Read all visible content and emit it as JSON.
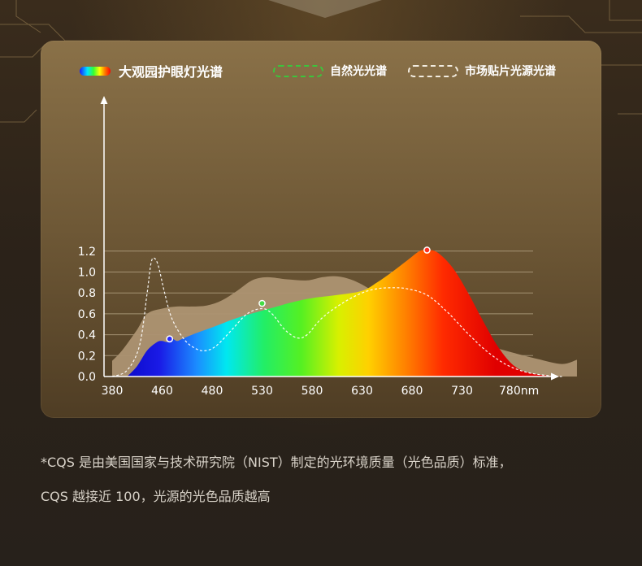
{
  "footnote": {
    "line1": "*CQS 是由美国国家与技术研究院（NIST）制定的光环境质量（光色品质）标准，",
    "line2": "CQS 越接近 100，光源的光色品质越高"
  },
  "colors": {
    "market_fill": "#ad9472",
    "natural_line": "#ffffff",
    "grid": "#b9a889",
    "axis": "#ffffff",
    "text": "#ffffff"
  },
  "chart_data": {
    "type": "area",
    "legend": [
      "大观园护眼灯光谱",
      "自然光光谱",
      "市场贴片光源光谱"
    ],
    "legend_placement": "top",
    "xlabel": "",
    "ylabel": "",
    "xticks": [
      "380",
      "460",
      "480",
      "530",
      "580",
      "630",
      "680",
      "730",
      "780nm"
    ],
    "yticks": [
      "0.0",
      "0.2",
      "0.4",
      "0.6",
      "0.8",
      "1.0",
      "1.2"
    ],
    "ylim": [
      0,
      1.3
    ],
    "grid": true,
    "series": [
      {
        "name": "大观园护眼灯光谱",
        "style": "rainbow-fill",
        "points": [
          [
            0.3,
            0
          ],
          [
            0.5,
            0.1
          ],
          [
            0.7,
            0.25
          ],
          [
            0.9,
            0.33
          ],
          [
            1.0,
            0.34
          ],
          [
            1.1,
            0.33
          ],
          [
            1.2,
            0.36
          ],
          [
            1.3,
            0.34
          ],
          [
            1.4,
            0.36
          ],
          [
            1.6,
            0.4
          ],
          [
            2.0,
            0.47
          ],
          [
            2.5,
            0.56
          ],
          [
            3.0,
            0.63
          ],
          [
            3.3,
            0.67
          ],
          [
            3.6,
            0.71
          ],
          [
            4.0,
            0.75
          ],
          [
            4.5,
            0.78
          ],
          [
            5.0,
            0.82
          ],
          [
            5.3,
            0.9
          ],
          [
            5.6,
            1.0
          ],
          [
            5.9,
            1.11
          ],
          [
            6.15,
            1.2
          ],
          [
            6.3,
            1.21
          ],
          [
            6.5,
            1.19
          ],
          [
            6.8,
            1.05
          ],
          [
            7.1,
            0.82
          ],
          [
            7.4,
            0.55
          ],
          [
            7.7,
            0.3
          ],
          [
            8.0,
            0.12
          ],
          [
            8.3,
            0.04
          ],
          [
            8.7,
            0.01
          ],
          [
            9.0,
            0.0
          ]
        ],
        "markers": [
          [
            1.15,
            0.36
          ],
          [
            3.0,
            0.7
          ],
          [
            6.3,
            1.21
          ]
        ]
      },
      {
        "name": "自然光光谱",
        "style": "dashed-line",
        "points": [
          [
            0,
            0
          ],
          [
            0.3,
            0.06
          ],
          [
            0.55,
            0.3
          ],
          [
            0.7,
            0.8
          ],
          [
            0.78,
            1.09
          ],
          [
            0.85,
            1.13
          ],
          [
            0.93,
            1.05
          ],
          [
            1.05,
            0.8
          ],
          [
            1.2,
            0.55
          ],
          [
            1.45,
            0.35
          ],
          [
            1.7,
            0.26
          ],
          [
            1.9,
            0.25
          ],
          [
            2.1,
            0.3
          ],
          [
            2.4,
            0.45
          ],
          [
            2.7,
            0.6
          ],
          [
            3.0,
            0.65
          ],
          [
            3.2,
            0.6
          ],
          [
            3.45,
            0.45
          ],
          [
            3.7,
            0.37
          ],
          [
            3.9,
            0.4
          ],
          [
            4.2,
            0.56
          ],
          [
            4.6,
            0.7
          ],
          [
            5.0,
            0.8
          ],
          [
            5.3,
            0.84
          ],
          [
            5.6,
            0.85
          ],
          [
            5.9,
            0.84
          ],
          [
            6.3,
            0.78
          ],
          [
            6.7,
            0.62
          ],
          [
            7.1,
            0.42
          ],
          [
            7.5,
            0.24
          ],
          [
            7.9,
            0.11
          ],
          [
            8.3,
            0.04
          ],
          [
            8.7,
            0.01
          ],
          [
            9.0,
            0
          ]
        ]
      },
      {
        "name": "市场贴片光源光谱",
        "style": "flat-fill",
        "points": [
          [
            0,
            0.15
          ],
          [
            0.2,
            0.25
          ],
          [
            0.5,
            0.45
          ],
          [
            0.7,
            0.6
          ],
          [
            1.0,
            0.65
          ],
          [
            1.3,
            0.67
          ],
          [
            1.6,
            0.67
          ],
          [
            1.9,
            0.68
          ],
          [
            2.2,
            0.73
          ],
          [
            2.5,
            0.82
          ],
          [
            2.8,
            0.92
          ],
          [
            3.1,
            0.95
          ],
          [
            3.5,
            0.93
          ],
          [
            3.9,
            0.92
          ],
          [
            4.2,
            0.95
          ],
          [
            4.45,
            0.96
          ],
          [
            4.7,
            0.94
          ],
          [
            5.0,
            0.88
          ],
          [
            5.5,
            0.73
          ],
          [
            6.0,
            0.57
          ],
          [
            6.5,
            0.46
          ],
          [
            7.0,
            0.38
          ],
          [
            7.5,
            0.3
          ],
          [
            8.0,
            0.23
          ],
          [
            8.5,
            0.17
          ],
          [
            9.0,
            0.12
          ],
          [
            9.3,
            0.16
          ],
          [
            9.3,
            0.0
          ],
          [
            0,
            0.0
          ]
        ]
      }
    ]
  }
}
